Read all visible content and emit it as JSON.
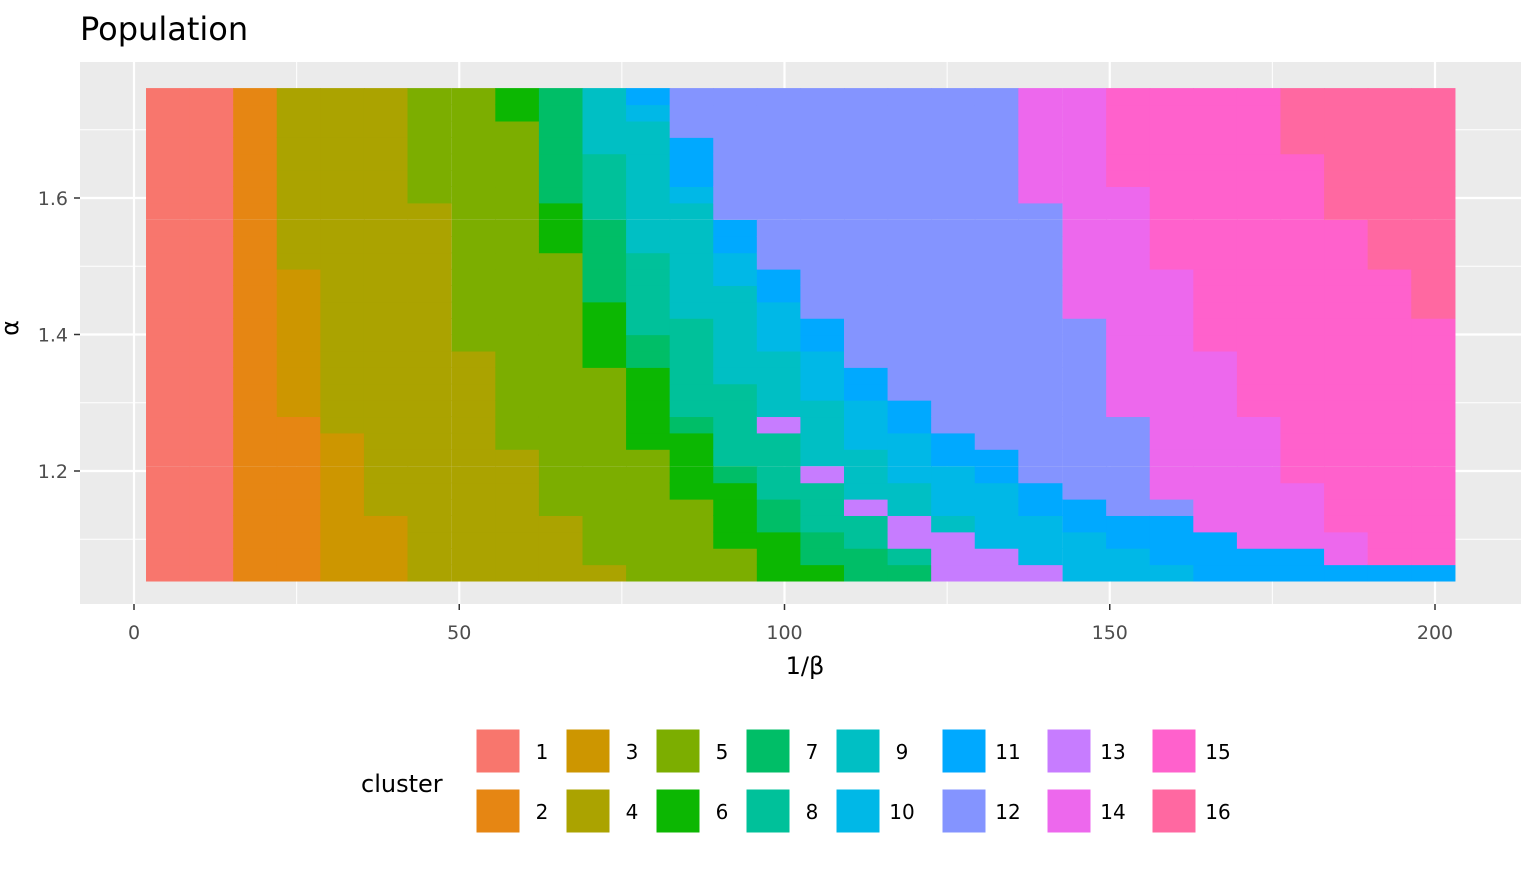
{
  "chart_data": {
    "type": "heatmap",
    "title": "Population",
    "xlabel": "1/β",
    "ylabel": "α",
    "xlim": [
      0,
      210
    ],
    "ylim": [
      1.04,
      1.76
    ],
    "x_ticks": [
      "0",
      "50",
      "100",
      "150",
      "200"
    ],
    "x_tick_values": [
      0,
      50,
      100,
      150,
      200
    ],
    "y_ticks": [
      "1.2",
      "1.4",
      "1.6"
    ],
    "y_tick_values": [
      1.2,
      1.4,
      1.6
    ],
    "grid": true,
    "legend": {
      "title": "cluster",
      "position": "bottom",
      "labels": [
        "1",
        "2",
        "3",
        "4",
        "5",
        "6",
        "7",
        "8",
        "9",
        "10",
        "11",
        "12",
        "13",
        "14",
        "15",
        "16"
      ]
    },
    "colors": {
      "1": "#F8766D",
      "2": "#E68613",
      "3": "#CD9600",
      "4": "#ABA300",
      "5": "#7CAE00",
      "6": "#0CB702",
      "7": "#00BE67",
      "8": "#00C19A",
      "9": "#00BFC4",
      "10": "#00B8E7",
      "11": "#00A9FF",
      "12": "#8494FF",
      "13": "#C77CFF",
      "14": "#ED68ED",
      "15": "#FF61CC",
      "16": "#FF68A1"
    },
    "x": [
      5.2,
      11.9,
      18.6,
      25.3,
      32.0,
      38.7,
      45.4,
      52.2,
      58.9,
      65.6,
      72.3,
      79.0,
      85.7,
      92.4,
      99.1,
      105.8,
      112.5,
      119.2,
      125.9,
      132.6,
      139.3,
      146.1,
      152.8,
      159.5,
      166.2,
      172.9,
      179.6,
      186.3,
      193.0,
      199.7
    ],
    "y": [
      1.051,
      1.075,
      1.099,
      1.123,
      1.147,
      1.171,
      1.195,
      1.22,
      1.244,
      1.268,
      1.292,
      1.316,
      1.34,
      1.364,
      1.388,
      1.412,
      1.436,
      1.46,
      1.484,
      1.508,
      1.532,
      1.556,
      1.581,
      1.605,
      1.629,
      1.653,
      1.677,
      1.701,
      1.725,
      1.749
    ],
    "column_runs_bottom_up": [
      [
        [
          1,
          30
        ]
      ],
      [
        [
          1,
          30
        ]
      ],
      [
        [
          2,
          30
        ]
      ],
      [
        [
          2,
          10
        ],
        [
          3,
          9
        ],
        [
          4,
          11
        ]
      ],
      [
        [
          3,
          9
        ],
        [
          4,
          21
        ]
      ],
      [
        [
          3,
          4
        ],
        [
          4,
          26
        ]
      ],
      [
        [
          4,
          23
        ],
        [
          5,
          7
        ]
      ],
      [
        [
          4,
          14
        ],
        [
          5,
          16
        ]
      ],
      [
        [
          4,
          8
        ],
        [
          5,
          20
        ],
        [
          6,
          2
        ]
      ],
      [
        [
          4,
          4
        ],
        [
          5,
          16
        ],
        [
          6,
          3
        ],
        [
          7,
          7
        ]
      ],
      [
        [
          4,
          1
        ],
        [
          5,
          12
        ],
        [
          6,
          4
        ],
        [
          7,
          5
        ],
        [
          8,
          4
        ],
        [
          9,
          4
        ]
      ],
      [
        [
          5,
          8
        ],
        [
          6,
          5
        ],
        [
          7,
          2
        ],
        [
          8,
          5
        ],
        [
          9,
          8
        ],
        [
          10,
          1
        ],
        [
          11,
          1
        ]
      ],
      [
        [
          5,
          5
        ],
        [
          6,
          4
        ],
        [
          7,
          1
        ],
        [
          8,
          6
        ],
        [
          9,
          7
        ],
        [
          10,
          1
        ],
        [
          11,
          3
        ],
        [
          12,
          3
        ]
      ],
      [
        [
          5,
          2
        ],
        [
          6,
          4
        ],
        [
          7,
          1
        ],
        [
          8,
          5
        ],
        [
          9,
          6
        ],
        [
          10,
          2
        ],
        [
          11,
          2
        ],
        [
          12,
          8
        ]
      ],
      [
        [
          6,
          3
        ],
        [
          7,
          2
        ],
        [
          8,
          4
        ],
        [
          13,
          1
        ],
        [
          9,
          4
        ],
        [
          10,
          3
        ],
        [
          11,
          2
        ],
        [
          12,
          11
        ]
      ],
      [
        [
          6,
          1
        ],
        [
          7,
          2
        ],
        [
          8,
          3
        ],
        [
          13,
          1
        ],
        [
          9,
          4
        ],
        [
          10,
          3
        ],
        [
          11,
          2
        ],
        [
          12,
          14
        ]
      ],
      [
        [
          7,
          2
        ],
        [
          8,
          2
        ],
        [
          13,
          1
        ],
        [
          9,
          3
        ],
        [
          10,
          3
        ],
        [
          11,
          2
        ],
        [
          12,
          17
        ]
      ],
      [
        [
          7,
          1
        ],
        [
          8,
          1
        ],
        [
          13,
          2
        ],
        [
          9,
          2
        ],
        [
          10,
          3
        ],
        [
          11,
          2
        ],
        [
          12,
          19
        ]
      ],
      [
        [
          13,
          3
        ],
        [
          9,
          1
        ],
        [
          10,
          3
        ],
        [
          11,
          2
        ],
        [
          12,
          21
        ]
      ],
      [
        [
          13,
          2
        ],
        [
          10,
          4
        ],
        [
          11,
          2
        ],
        [
          12,
          22
        ]
      ],
      [
        [
          13,
          1
        ],
        [
          10,
          3
        ],
        [
          11,
          2
        ],
        [
          12,
          17
        ],
        [
          14,
          7
        ]
      ],
      [
        [
          10,
          3
        ],
        [
          11,
          2
        ],
        [
          12,
          11
        ],
        [
          14,
          14
        ]
      ],
      [
        [
          10,
          2
        ],
        [
          11,
          2
        ],
        [
          12,
          6
        ],
        [
          14,
          14
        ],
        [
          15,
          6
        ]
      ],
      [
        [
          10,
          1
        ],
        [
          11,
          3
        ],
        [
          12,
          1
        ],
        [
          14,
          14
        ],
        [
          15,
          11
        ]
      ],
      [
        [
          11,
          3
        ],
        [
          14,
          11
        ],
        [
          15,
          16
        ]
      ],
      [
        [
          11,
          2
        ],
        [
          14,
          8
        ],
        [
          15,
          20
        ]
      ],
      [
        [
          11,
          2
        ],
        [
          14,
          4
        ],
        [
          15,
          20
        ],
        [
          16,
          4
        ]
      ],
      [
        [
          11,
          1
        ],
        [
          14,
          2
        ],
        [
          15,
          19
        ],
        [
          16,
          8
        ]
      ],
      [
        [
          11,
          1
        ],
        [
          15,
          18
        ],
        [
          16,
          11
        ]
      ],
      [
        [
          11,
          1
        ],
        [
          15,
          15
        ],
        [
          16,
          14
        ]
      ]
    ]
  }
}
